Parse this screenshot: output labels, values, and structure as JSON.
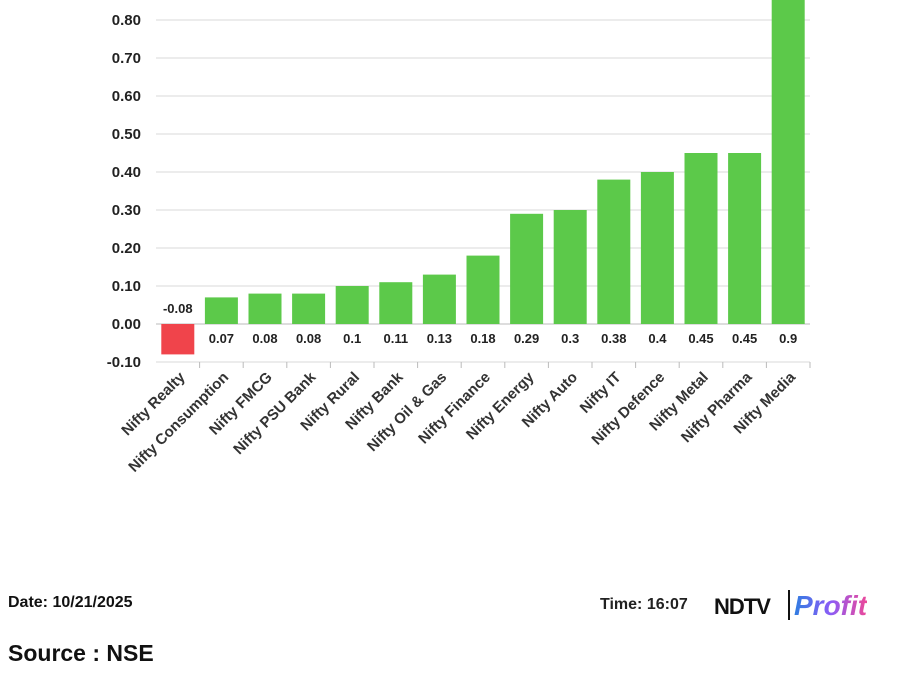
{
  "chart_data": {
    "type": "bar",
    "categories": [
      "Nifty Realty",
      "Nifty Consumption",
      "Nifty FMCG",
      "Nifty PSU Bank",
      "Nifty Rural",
      "Nifty Bank",
      "Nifty Oil & Gas",
      "Nifty Finance",
      "Nifty Energy",
      "Nifty Auto",
      "Nifty IT",
      "Nifty Defence",
      "Nifty Metal",
      "Nifty Pharma",
      "Nifty Media"
    ],
    "values": [
      -0.08,
      0.07,
      0.08,
      0.08,
      0.1,
      0.11,
      0.13,
      0.18,
      0.29,
      0.3,
      0.38,
      0.4,
      0.45,
      0.45,
      0.9
    ],
    "data_labels": [
      "-0.08",
      "0.07",
      "0.08",
      "0.08",
      "0.1",
      "0.11",
      "0.13",
      "0.18",
      "0.29",
      "0.3",
      "0.38",
      "0.4",
      "0.45",
      "0.45",
      "0.9"
    ],
    "yticks": [
      "-0.10",
      "0.00",
      "0.10",
      "0.20",
      "0.30",
      "0.40",
      "0.50",
      "0.60",
      "0.70",
      "0.80"
    ],
    "ylim": [
      -0.1,
      0.8
    ],
    "grid": true,
    "colors": {
      "positive": "#5cc94a",
      "negative": "#f0444b"
    }
  },
  "footer": {
    "date": "Date: 10/21/2025",
    "time": "Time: 16:07",
    "source": "Source : NSE",
    "logo_ndtv": "NDTV",
    "logo_profit": "Profit"
  }
}
